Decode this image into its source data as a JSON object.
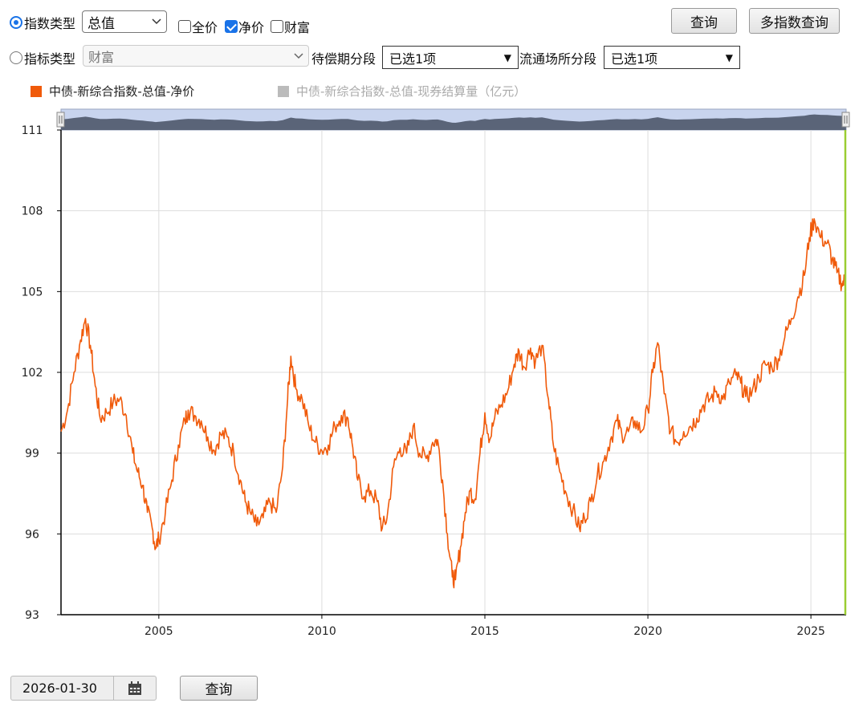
{
  "filters": {
    "index_type_label": "指数类型",
    "index_type_value": "总值",
    "price_options": [
      {
        "label": "全价",
        "checked": false
      },
      {
        "label": "净价",
        "checked": true
      },
      {
        "label": "财富",
        "checked": false
      }
    ],
    "indicator_type_label": "指标类型",
    "indicator_type_value": "财富",
    "maturity_label": "待偿期分段",
    "maturity_value": "已选1项",
    "venue_label": "流通场所分段",
    "venue_value": "已选1项",
    "query_button": "查询",
    "multi_query_button": "多指数查询"
  },
  "legend": [
    {
      "label": "中债-新综合指数-总值-净价",
      "color": "#f05a0a",
      "active": true
    },
    {
      "label": "中债-新综合指数-总值-现券结算量（亿元）",
      "color": "#bbbbbb",
      "active": false
    }
  ],
  "bottom": {
    "date_value": "2026-01-30",
    "query_button": "查询",
    "calendar_icon": "calendar-icon"
  },
  "chart_data": {
    "type": "line",
    "title": "",
    "xlabel": "",
    "ylabel": "",
    "xlim": [
      2002.0,
      2026.08
    ],
    "ylim": [
      93,
      111
    ],
    "x_ticks": [
      "2005",
      "2010",
      "2015",
      "2020",
      "2025"
    ],
    "y_ticks": [
      "93",
      "96",
      "99",
      "102",
      "105",
      "108",
      "111"
    ],
    "grid": true,
    "colors": {
      "line": "#f05a0a",
      "axis": "#000000",
      "grid": "#dddddd",
      "cursor": "#9acd32",
      "navigator_fill": "#5a6478",
      "navigator_bg": "#c8d4ee"
    },
    "series": [
      {
        "name": "中债-新综合指数-总值-净价",
        "points": [
          [
            2002.0,
            99.8
          ],
          [
            2002.2,
            100.6
          ],
          [
            2002.4,
            102.0
          ],
          [
            2002.6,
            103.2
          ],
          [
            2002.75,
            104.0
          ],
          [
            2002.9,
            103.0
          ],
          [
            2003.05,
            101.5
          ],
          [
            2003.2,
            100.3
          ],
          [
            2003.4,
            100.5
          ],
          [
            2003.6,
            100.9
          ],
          [
            2003.8,
            101.0
          ],
          [
            2004.0,
            100.4
          ],
          [
            2004.2,
            99.0
          ],
          [
            2004.35,
            98.3
          ],
          [
            2004.5,
            97.8
          ],
          [
            2004.65,
            96.8
          ],
          [
            2004.8,
            96.2
          ],
          [
            2004.9,
            95.5
          ],
          [
            2005.0,
            95.8
          ],
          [
            2005.2,
            96.8
          ],
          [
            2005.4,
            98.0
          ],
          [
            2005.6,
            99.3
          ],
          [
            2005.8,
            100.2
          ],
          [
            2005.9,
            100.6
          ],
          [
            2006.1,
            100.4
          ],
          [
            2006.3,
            100.2
          ],
          [
            2006.5,
            99.6
          ],
          [
            2006.7,
            99.1
          ],
          [
            2006.9,
            99.7
          ],
          [
            2007.1,
            99.6
          ],
          [
            2007.3,
            99.0
          ],
          [
            2007.5,
            98.0
          ],
          [
            2007.65,
            97.2
          ],
          [
            2007.8,
            96.8
          ],
          [
            2008.0,
            96.3
          ],
          [
            2008.2,
            96.6
          ],
          [
            2008.4,
            97.2
          ],
          [
            2008.6,
            96.8
          ],
          [
            2008.8,
            98.5
          ],
          [
            2008.95,
            101.0
          ],
          [
            2009.05,
            102.6
          ],
          [
            2009.2,
            101.4
          ],
          [
            2009.4,
            101.0
          ],
          [
            2009.6,
            100.0
          ],
          [
            2009.8,
            99.4
          ],
          [
            2010.0,
            99.1
          ],
          [
            2010.2,
            99.3
          ],
          [
            2010.4,
            100.0
          ],
          [
            2010.6,
            100.4
          ],
          [
            2010.8,
            100.3
          ],
          [
            2010.95,
            99.2
          ],
          [
            2011.1,
            98.0
          ],
          [
            2011.3,
            97.4
          ],
          [
            2011.5,
            97.6
          ],
          [
            2011.7,
            97.2
          ],
          [
            2011.85,
            96.2
          ],
          [
            2012.0,
            96.6
          ],
          [
            2012.2,
            98.5
          ],
          [
            2012.4,
            99.2
          ],
          [
            2012.6,
            99.0
          ],
          [
            2012.8,
            100.0
          ],
          [
            2013.0,
            99.0
          ],
          [
            2013.2,
            98.8
          ],
          [
            2013.4,
            99.4
          ],
          [
            2013.55,
            99.5
          ],
          [
            2013.7,
            98.0
          ],
          [
            2013.85,
            96.0
          ],
          [
            2014.0,
            94.4
          ],
          [
            2014.1,
            94.3
          ],
          [
            2014.25,
            95.5
          ],
          [
            2014.4,
            96.8
          ],
          [
            2014.55,
            97.6
          ],
          [
            2014.7,
            97.3
          ],
          [
            2014.85,
            99.0
          ],
          [
            2015.0,
            100.5
          ],
          [
            2015.15,
            99.5
          ],
          [
            2015.3,
            100.3
          ],
          [
            2015.5,
            100.8
          ],
          [
            2015.7,
            101.3
          ],
          [
            2015.9,
            102.3
          ],
          [
            2016.05,
            102.8
          ],
          [
            2016.2,
            102.2
          ],
          [
            2016.4,
            102.9
          ],
          [
            2016.55,
            102.4
          ],
          [
            2016.75,
            103.0
          ],
          [
            2016.95,
            101.0
          ],
          [
            2017.1,
            99.3
          ],
          [
            2017.3,
            98.3
          ],
          [
            2017.5,
            97.5
          ],
          [
            2017.7,
            96.9
          ],
          [
            2017.9,
            96.2
          ],
          [
            2018.05,
            96.6
          ],
          [
            2018.25,
            97.2
          ],
          [
            2018.45,
            98.2
          ],
          [
            2018.65,
            98.7
          ],
          [
            2018.85,
            99.5
          ],
          [
            2019.05,
            100.2
          ],
          [
            2019.2,
            99.7
          ],
          [
            2019.4,
            99.8
          ],
          [
            2019.6,
            100.2
          ],
          [
            2019.8,
            99.8
          ],
          [
            2020.0,
            100.6
          ],
          [
            2020.15,
            102.0
          ],
          [
            2020.3,
            103.1
          ],
          [
            2020.5,
            101.2
          ],
          [
            2020.7,
            99.8
          ],
          [
            2020.9,
            99.4
          ],
          [
            2021.1,
            99.8
          ],
          [
            2021.3,
            100.0
          ],
          [
            2021.5,
            100.3
          ],
          [
            2021.7,
            100.8
          ],
          [
            2021.9,
            101.0
          ],
          [
            2022.1,
            101.3
          ],
          [
            2022.3,
            101.0
          ],
          [
            2022.5,
            101.6
          ],
          [
            2022.7,
            101.9
          ],
          [
            2022.85,
            101.6
          ],
          [
            2023.0,
            101.1
          ],
          [
            2023.2,
            101.3
          ],
          [
            2023.4,
            101.8
          ],
          [
            2023.6,
            102.3
          ],
          [
            2023.8,
            102.2
          ],
          [
            2024.0,
            102.5
          ],
          [
            2024.2,
            103.3
          ],
          [
            2024.4,
            104.0
          ],
          [
            2024.6,
            104.8
          ],
          [
            2024.8,
            105.6
          ],
          [
            2024.95,
            107.0
          ],
          [
            2025.1,
            107.7
          ],
          [
            2025.3,
            107.0
          ],
          [
            2025.5,
            106.8
          ],
          [
            2025.65,
            106.2
          ],
          [
            2025.8,
            105.7
          ],
          [
            2025.95,
            105.3
          ],
          [
            2026.05,
            105.4
          ]
        ]
      }
    ]
  }
}
